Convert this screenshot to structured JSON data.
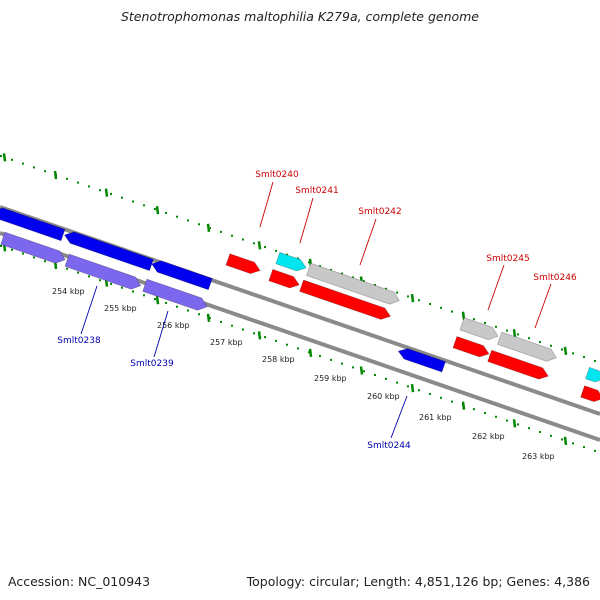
{
  "title": "Stenotrophomonas maltophilia K279a, complete genome",
  "footer": {
    "accession": "Accession: NC_010943",
    "stats": "Topology: circular; Length: 4,851,126 bp; Genes: 4,386"
  },
  "ticks": [
    "254 kbp",
    "255 kbp",
    "256 kbp",
    "257 kbp",
    "258 kbp",
    "259 kbp",
    "260 kbp",
    "261 kbp",
    "262 kbp",
    "263 kbp"
  ],
  "genes_forward": [
    "Smlt0240",
    "Smlt0241",
    "Smlt0242",
    "Smlt0245",
    "Smlt0246"
  ],
  "genes_reverse": [
    "Smlt0238",
    "Smlt0239",
    "Smlt0244"
  ],
  "colors": {
    "forward_label": "#cc0000",
    "reverse_label": "#0000aa",
    "cds_forward": "#ff0000",
    "cds_reverse": "#0000ee",
    "rna_forward": "#00e5ee",
    "feature_gray": "#c8c8c8",
    "feature_purple": "#7b68ee",
    "ticks": "#008800",
    "backbone": "#8a8a8a"
  }
}
